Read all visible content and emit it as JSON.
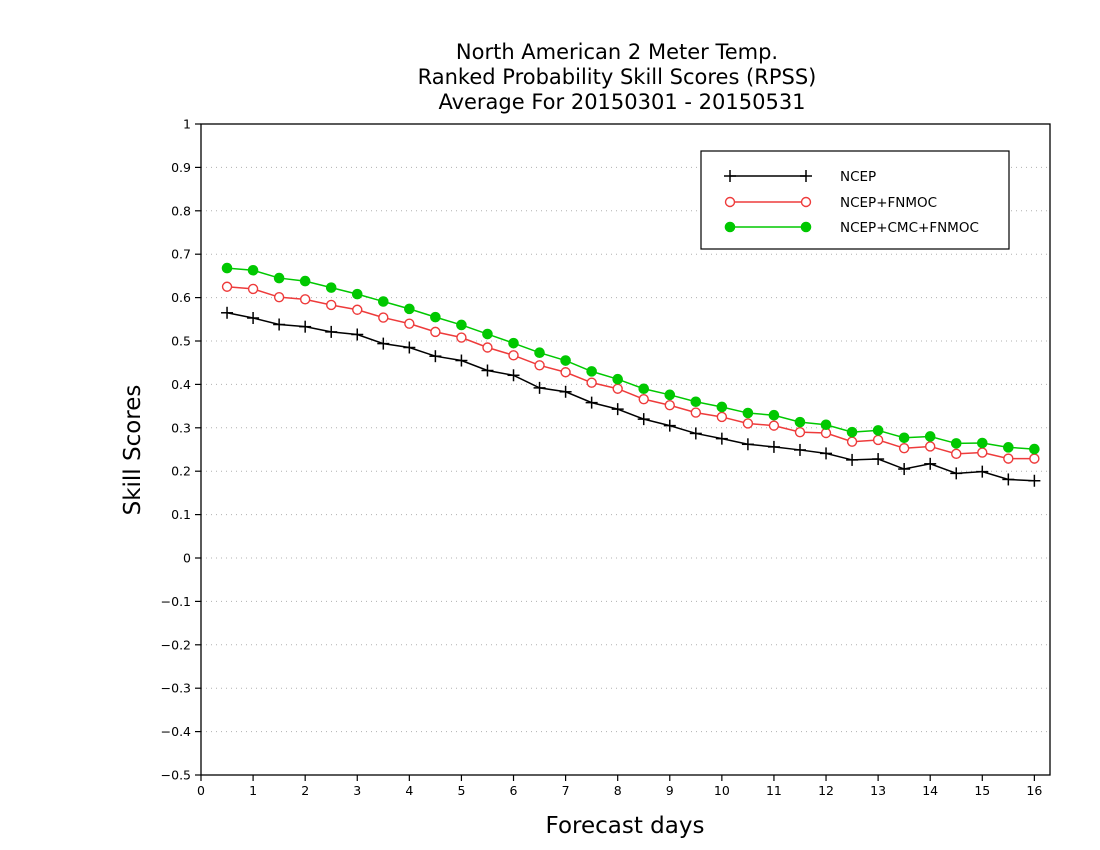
{
  "chart_data": {
    "type": "line",
    "title": [
      "North American 2 Meter Temp.",
      "Ranked Probability Skill Scores (RPSS)",
      "Average For 20150301 - 20150531"
    ],
    "xlabel": "Forecast days",
    "ylabel": "Skill Scores",
    "xlim": [
      0,
      16.3
    ],
    "ylim": [
      -0.5,
      1
    ],
    "x_ticks": [
      0,
      1,
      2,
      3,
      4,
      5,
      6,
      7,
      8,
      9,
      10,
      11,
      12,
      13,
      14,
      15,
      16
    ],
    "x_tick_labels": [
      "0",
      "1",
      "2",
      "3",
      "4",
      "5",
      "6",
      "7",
      "8",
      "9",
      "10",
      "11",
      "12",
      "13",
      "14",
      "15",
      "16"
    ],
    "y_ticks": [
      -0.5,
      -0.4,
      -0.3,
      -0.2,
      -0.1,
      0,
      0.1,
      0.2,
      0.3,
      0.4,
      0.5,
      0.6,
      0.7,
      0.8,
      0.9,
      1
    ],
    "y_tick_labels": [
      "−0.5",
      "−0.4",
      "−0.3",
      "−0.2",
      "−0.1",
      "0",
      "0.1",
      "0.2",
      "0.3",
      "0.4",
      "0.5",
      "0.6",
      "0.7",
      "0.8",
      "0.9",
      "1"
    ],
    "grid": "horizontal-dotted",
    "legend_position": "top-right",
    "x": [
      0.5,
      1,
      1.5,
      2,
      2.5,
      3,
      3.5,
      4,
      4.5,
      5,
      5.5,
      6,
      6.5,
      7,
      7.5,
      8,
      8.5,
      9,
      9.5,
      10,
      10.5,
      11,
      11.5,
      12,
      12.5,
      13,
      13.5,
      14,
      14.5,
      15,
      15.5,
      16
    ],
    "series": [
      {
        "name": "NCEP",
        "color": "#000000",
        "marker": "plus",
        "values": [
          0.565,
          0.553,
          0.538,
          0.533,
          0.521,
          0.515,
          0.494,
          0.485,
          0.465,
          0.455,
          0.432,
          0.421,
          0.392,
          0.383,
          0.358,
          0.343,
          0.32,
          0.305,
          0.287,
          0.275,
          0.262,
          0.256,
          0.249,
          0.241,
          0.226,
          0.228,
          0.205,
          0.217,
          0.195,
          0.199,
          0.181,
          0.178
        ]
      },
      {
        "name": "NCEP+FNMOC",
        "color": "#ee3b3b",
        "marker": "open-circle",
        "values": [
          0.625,
          0.62,
          0.601,
          0.596,
          0.583,
          0.572,
          0.554,
          0.54,
          0.521,
          0.508,
          0.485,
          0.467,
          0.444,
          0.428,
          0.404,
          0.39,
          0.366,
          0.352,
          0.335,
          0.325,
          0.31,
          0.305,
          0.29,
          0.288,
          0.268,
          0.272,
          0.253,
          0.257,
          0.24,
          0.243,
          0.229,
          0.229
        ]
      },
      {
        "name": "NCEP+CMC+FNMOC",
        "color": "#00c800",
        "marker": "filled-circle",
        "values": [
          0.668,
          0.663,
          0.645,
          0.638,
          0.623,
          0.608,
          0.591,
          0.574,
          0.555,
          0.537,
          0.516,
          0.495,
          0.473,
          0.455,
          0.43,
          0.412,
          0.39,
          0.376,
          0.36,
          0.348,
          0.334,
          0.329,
          0.313,
          0.307,
          0.29,
          0.294,
          0.277,
          0.28,
          0.264,
          0.265,
          0.255,
          0.251
        ]
      }
    ]
  }
}
